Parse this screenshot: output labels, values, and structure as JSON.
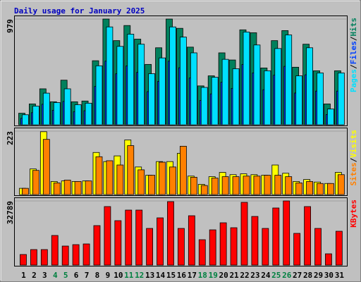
{
  "chart_data": {
    "type": "bar",
    "title": "Daily usage for January 2025",
    "categories": [
      "1",
      "2",
      "3",
      "4",
      "5",
      "6",
      "7",
      "8",
      "9",
      "10",
      "11",
      "12",
      "13",
      "14",
      "15",
      "16",
      "17",
      "18",
      "19",
      "20",
      "21",
      "22",
      "23",
      "24",
      "25",
      "26",
      "27",
      "28",
      "29",
      "30",
      "31"
    ],
    "category_colors": [
      "#000000",
      "#000000",
      "#000000",
      "#008040",
      "#008040",
      "#000000",
      "#000000",
      "#000000",
      "#000000",
      "#000000",
      "#008040",
      "#008040",
      "#000000",
      "#000000",
      "#000000",
      "#000000",
      "#000000",
      "#008040",
      "#008040",
      "#000000",
      "#000000",
      "#000000",
      "#000000",
      "#000000",
      "#008040",
      "#008040",
      "#000000",
      "#000000",
      "#000000",
      "#000000",
      "#000000"
    ],
    "legend_separator": "/",
    "panels": [
      {
        "ylim": [
          0,
          979
        ],
        "yticks": [
          979
        ],
        "series": [
          {
            "name": "Hits",
            "color": "#00805c",
            "values": [
              107,
              193,
              333,
              213,
              413,
              213,
              220,
              593,
              979,
              779,
              919,
              793,
              559,
              713,
              979,
              893,
              719,
              360,
              453,
              666,
              600,
              879,
              852,
              526,
              779,
              872,
              533,
              746,
              500,
              193,
              500
            ]
          },
          {
            "name": "Files",
            "color": "#0040ff",
            "values": [
              60,
              112,
              190,
              134,
              216,
              121,
              130,
              355,
              589,
              472,
              545,
              485,
              307,
              402,
              589,
              528,
              433,
              225,
              286,
              394,
              337,
              558,
              480,
              325,
              459,
              541,
              294,
              463,
              312,
              95,
              312
            ]
          },
          {
            "name": "Pages",
            "color": "#00e0ff",
            "values": [
              93,
              173,
              293,
              206,
              333,
              186,
              200,
              546,
              906,
              726,
              839,
              746,
              473,
              619,
              906,
              812,
              666,
              346,
              440,
              606,
              519,
              859,
              739,
              500,
              706,
              832,
              453,
              713,
              480,
              146,
              480
            ]
          }
        ]
      },
      {
        "ylim": [
          0,
          223
        ],
        "yticks": [
          223
        ],
        "series": [
          {
            "name": "Visits",
            "color": "#ffff00",
            "values": [
              22,
              90,
              221,
              46,
              48,
              46,
              48,
              148,
              116,
              136,
              192,
              97,
              68,
              116,
              116,
              145,
              65,
              36,
              63,
              78,
              70,
              73,
              70,
              68,
              104,
              75,
              46,
              53,
              44,
              39,
              78
            ]
          },
          {
            "name": "Sites",
            "color": "#ff8000",
            "values": [
              22,
              85,
              194,
              41,
              51,
              46,
              48,
              133,
              119,
              104,
              172,
              87,
              68,
              114,
              97,
              170,
              61,
              32,
              58,
              63,
              63,
              65,
              65,
              68,
              68,
              63,
              41,
              46,
              39,
              39,
              70
            ]
          }
        ]
      },
      {
        "ylim": [
          0,
          32789
        ],
        "yticks": [
          32789
        ],
        "series": [
          {
            "name": "KBytes",
            "color": "#ff0000",
            "values": [
              5405,
              7927,
              7927,
              15133,
              9728,
              10449,
              10810,
              20178,
              29907,
              22700,
              28105,
              28105,
              18737,
              24141,
              32428,
              18737,
              25222,
              12971,
              18016,
              21619,
              19097,
              32068,
              24862,
              18737,
              29186,
              32789,
              16214,
              29907,
              18737,
              5765,
              17295
            ]
          }
        ]
      }
    ]
  }
}
